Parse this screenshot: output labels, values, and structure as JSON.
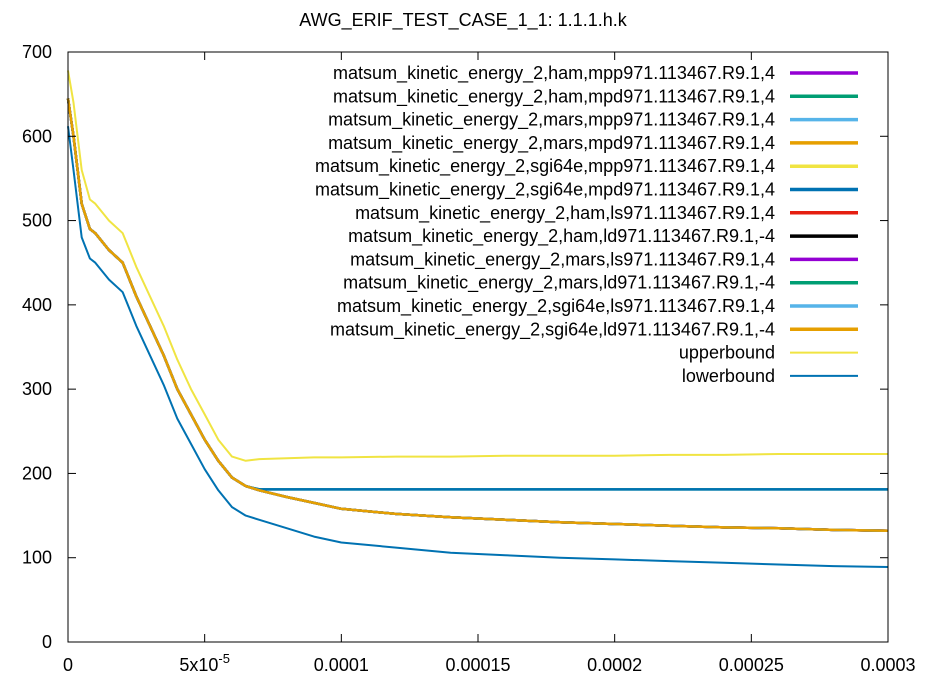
{
  "chart_data": {
    "type": "line",
    "title": "AWG_ERIF_TEST_CASE_1_1: 1.1.1.h.k",
    "xlabel": "",
    "ylabel": "",
    "xlim": [
      0,
      0.0003
    ],
    "ylim": [
      0,
      700
    ],
    "x_ticks": [
      {
        "value": 0,
        "label": "0"
      },
      {
        "value": 5e-05,
        "label": "5x10",
        "sup": "-5"
      },
      {
        "value": 0.0001,
        "label": "0.0001"
      },
      {
        "value": 0.00015,
        "label": "0.00015"
      },
      {
        "value": 0.0002,
        "label": "0.0002"
      },
      {
        "value": 0.00025,
        "label": "0.00025"
      },
      {
        "value": 0.0003,
        "label": "0.0003"
      }
    ],
    "y_ticks": [
      {
        "value": 0,
        "label": "0"
      },
      {
        "value": 100,
        "label": "100"
      },
      {
        "value": 200,
        "label": "200"
      },
      {
        "value": 300,
        "label": "300"
      },
      {
        "value": 400,
        "label": "400"
      },
      {
        "value": 500,
        "label": "500"
      },
      {
        "value": 600,
        "label": "600"
      },
      {
        "value": 700,
        "label": "700"
      }
    ],
    "grid": false,
    "legend_position": "top-right",
    "x": [
      0,
      2e-06,
      5e-06,
      8e-06,
      1e-05,
      1.5e-05,
      2e-05,
      2.5e-05,
      3e-05,
      3.5e-05,
      4e-05,
      4.5e-05,
      5e-05,
      5.5e-05,
      6e-05,
      6.5e-05,
      7e-05,
      8e-05,
      9e-05,
      0.0001,
      0.00012,
      0.00014,
      0.00016,
      0.00018,
      0.0002,
      0.00022,
      0.00024,
      0.00026,
      0.00028,
      0.0003
    ],
    "series": [
      {
        "name": "matsum_kinetic_energy_2,ham,mpp971.113467.R9.1,4",
        "color": "#9400d3",
        "values": [
          645,
          600,
          520,
          490,
          485,
          465,
          450,
          410,
          375,
          340,
          300,
          270,
          240,
          215,
          195,
          185,
          180,
          172,
          165,
          158,
          152,
          148,
          145,
          142,
          140,
          138,
          136,
          135,
          133,
          132
        ]
      },
      {
        "name": "matsum_kinetic_energy_2,ham,mpd971.113467.R9.1,4",
        "color": "#009e73",
        "values": [
          645,
          600,
          520,
          490,
          485,
          465,
          450,
          410,
          375,
          340,
          300,
          270,
          240,
          215,
          195,
          185,
          181,
          181,
          181,
          181,
          181,
          181,
          181,
          181,
          181,
          181,
          181,
          181,
          181,
          181
        ]
      },
      {
        "name": "matsum_kinetic_energy_2,mars,mpp971.113467.R9.1,4",
        "color": "#56b4e9",
        "values": [
          645,
          600,
          520,
          490,
          485,
          465,
          450,
          410,
          375,
          340,
          300,
          270,
          240,
          215,
          195,
          185,
          180,
          172,
          165,
          158,
          152,
          148,
          145,
          142,
          140,
          138,
          136,
          135,
          133,
          132
        ]
      },
      {
        "name": "matsum_kinetic_energy_2,mars,mpd971.113467.R9.1,4",
        "color": "#e69f00",
        "values": [
          645,
          600,
          520,
          490,
          485,
          465,
          450,
          410,
          375,
          340,
          300,
          270,
          240,
          215,
          195,
          185,
          180,
          172,
          165,
          158,
          152,
          148,
          145,
          142,
          140,
          138,
          136,
          135,
          133,
          132
        ]
      },
      {
        "name": "matsum_kinetic_energy_2,sgi64e,mpp971.113467.R9.1,4",
        "color": "#f0e442",
        "values": [
          645,
          600,
          520,
          490,
          485,
          465,
          450,
          410,
          375,
          340,
          300,
          270,
          240,
          215,
          195,
          185,
          180,
          172,
          165,
          158,
          152,
          148,
          145,
          142,
          140,
          138,
          136,
          135,
          133,
          132
        ]
      },
      {
        "name": "matsum_kinetic_energy_2,sgi64e,mpd971.113467.R9.1,4",
        "color": "#0072b2",
        "values": [
          645,
          600,
          520,
          490,
          485,
          465,
          450,
          410,
          375,
          340,
          300,
          270,
          240,
          215,
          195,
          185,
          181,
          181,
          181,
          181,
          181,
          181,
          181,
          181,
          181,
          181,
          181,
          181,
          181,
          181
        ]
      },
      {
        "name": "matsum_kinetic_energy_2,ham,ls971.113467.R9.1,4",
        "color": "#e51e10",
        "values": [
          645,
          600,
          520,
          490,
          485,
          465,
          450,
          410,
          375,
          340,
          300,
          270,
          240,
          215,
          195,
          185,
          180,
          172,
          165,
          158,
          152,
          148,
          145,
          142,
          140,
          138,
          136,
          135,
          133,
          132
        ]
      },
      {
        "name": "matsum_kinetic_energy_2,ham,ld971.113467.R9.1,-4",
        "color": "#000000",
        "values": [
          645,
          600,
          520,
          490,
          485,
          465,
          450,
          410,
          375,
          340,
          300,
          270,
          240,
          215,
          195,
          185,
          180,
          172,
          165,
          158,
          152,
          148,
          145,
          142,
          140,
          138,
          136,
          135,
          133,
          132
        ]
      },
      {
        "name": "matsum_kinetic_energy_2,mars,ls971.113467.R9.1,4",
        "color": "#9400d3",
        "values": [
          645,
          600,
          520,
          490,
          485,
          465,
          450,
          410,
          375,
          340,
          300,
          270,
          240,
          215,
          195,
          185,
          180,
          172,
          165,
          158,
          152,
          148,
          145,
          142,
          140,
          138,
          136,
          135,
          133,
          132
        ]
      },
      {
        "name": "matsum_kinetic_energy_2,mars,ld971.113467.R9.1,-4",
        "color": "#009e73",
        "values": [
          645,
          600,
          520,
          490,
          485,
          465,
          450,
          410,
          375,
          340,
          300,
          270,
          240,
          215,
          195,
          185,
          180,
          172,
          165,
          158,
          152,
          148,
          145,
          142,
          140,
          138,
          136,
          135,
          133,
          132
        ]
      },
      {
        "name": "matsum_kinetic_energy_2,sgi64e,ls971.113467.R9.1,4",
        "color": "#56b4e9",
        "values": [
          645,
          600,
          520,
          490,
          485,
          465,
          450,
          410,
          375,
          340,
          300,
          270,
          240,
          215,
          195,
          185,
          180,
          172,
          165,
          158,
          152,
          148,
          145,
          142,
          140,
          138,
          136,
          135,
          133,
          132
        ]
      },
      {
        "name": "matsum_kinetic_energy_2,sgi64e,ld971.113467.R9.1,-4",
        "color": "#e69f00",
        "values": [
          645,
          600,
          520,
          490,
          485,
          465,
          450,
          410,
          375,
          340,
          300,
          270,
          240,
          215,
          195,
          185,
          180,
          172,
          165,
          158,
          152,
          148,
          145,
          142,
          140,
          138,
          136,
          135,
          133,
          132
        ]
      },
      {
        "name": "upperbound",
        "color": "#f0e442",
        "values": [
          678,
          640,
          560,
          525,
          520,
          500,
          485,
          445,
          410,
          375,
          335,
          300,
          270,
          240,
          220,
          215,
          217,
          218,
          219,
          219,
          220,
          220,
          221,
          221,
          221,
          222,
          222,
          223,
          223,
          223
        ]
      },
      {
        "name": "lowerbound",
        "color": "#0072b2",
        "values": [
          612,
          560,
          480,
          455,
          450,
          430,
          415,
          375,
          340,
          305,
          265,
          235,
          205,
          180,
          160,
          150,
          145,
          135,
          125,
          118,
          112,
          106,
          103,
          100,
          98,
          96,
          94,
          92,
          90,
          89
        ]
      }
    ]
  }
}
